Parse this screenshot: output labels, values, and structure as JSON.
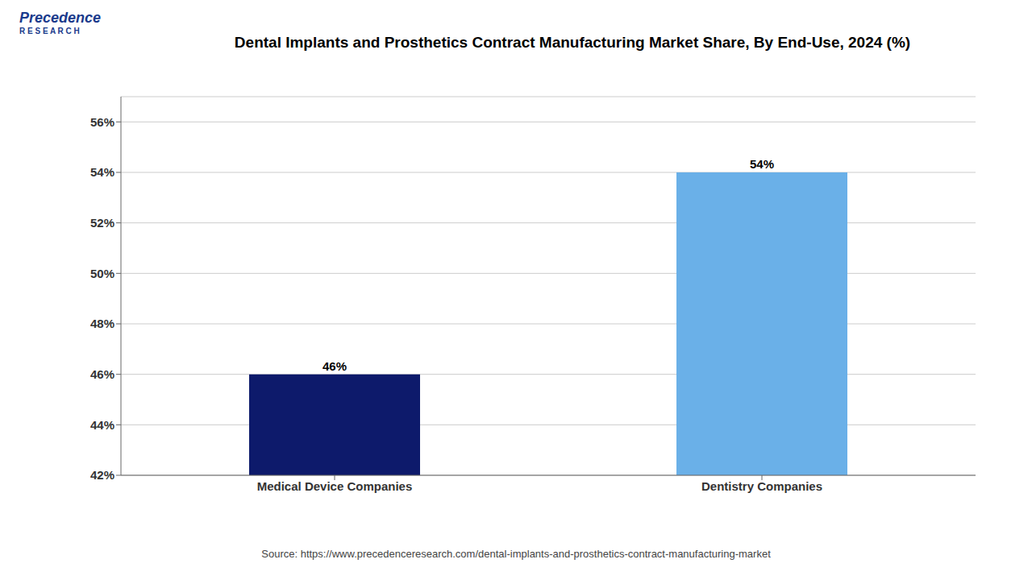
{
  "chart_data": {
    "type": "bar",
    "title": "Dental Implants and Prosthetics Contract Manufacturing Market Share, By End-Use, 2024 (%)",
    "categories": [
      "Medical Device Companies",
      "Dentistry Companies"
    ],
    "values": [
      46,
      54
    ],
    "value_labels": [
      "46%",
      "54%"
    ],
    "colors": [
      "#0d1a6b",
      "#6ab0e8"
    ],
    "ylim": [
      42,
      57
    ],
    "yticks": [
      {
        "value": 42,
        "label": "42%"
      },
      {
        "value": 44,
        "label": "44%"
      },
      {
        "value": 46,
        "label": "46%"
      },
      {
        "value": 48,
        "label": "48%"
      },
      {
        "value": 50,
        "label": "50%"
      },
      {
        "value": 52,
        "label": "52%"
      },
      {
        "value": 54,
        "label": "54%"
      },
      {
        "value": 56,
        "label": "56%"
      }
    ],
    "grid": true,
    "data_labels": true,
    "annotations": [
      "Source: https://www.precedenceresearch.com/dental-implants-and-prosthetics-contract-manufacturing-market",
      "Precedence",
      "R E S E A R C H"
    ]
  }
}
